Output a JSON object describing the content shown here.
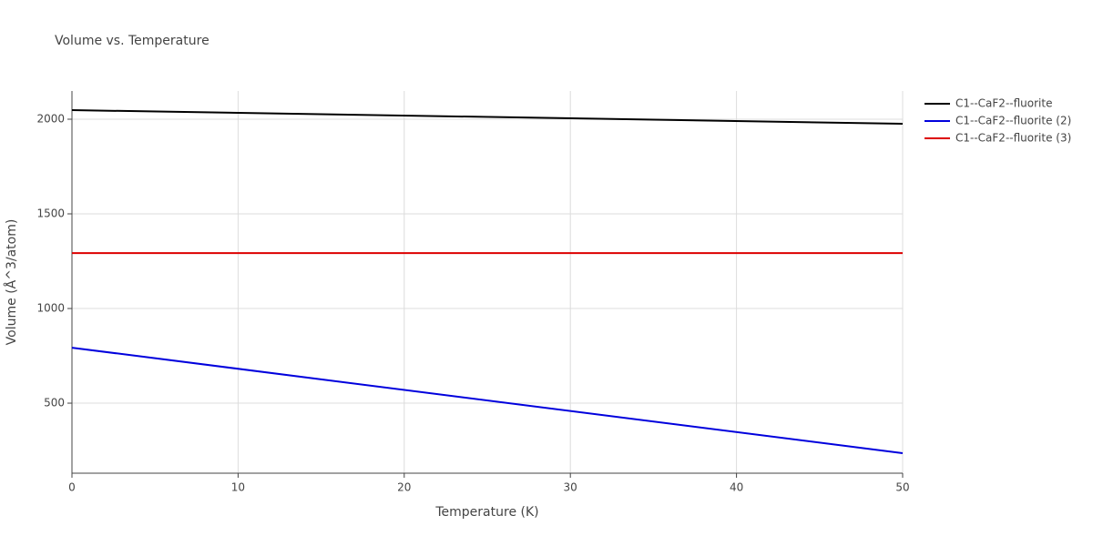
{
  "chart_data": {
    "type": "line",
    "title": "Volume vs. Temperature",
    "x_label": "Temperature (K)",
    "y_label": "Volume (Å^3/atom)",
    "x": [
      0,
      50
    ],
    "series": [
      {
        "name": "C1--CaF2--fluorite",
        "color": "#000000",
        "values": [
          2048,
          1976
        ]
      },
      {
        "name": "C1--CaF2--fluorite (2)",
        "color": "#0000dd",
        "values": [
          793,
          236
        ]
      },
      {
        "name": "C1--CaF2--fluorite (3)",
        "color": "#dd0000",
        "values": [
          1293,
          1293
        ]
      }
    ],
    "xlim": [
      0,
      50
    ],
    "xticks": [
      0,
      10,
      20,
      30,
      40,
      50
    ],
    "ylim": [
      130,
      2149
    ],
    "yticks": [
      500,
      1000,
      1500,
      2000
    ],
    "grid": true,
    "legend": "outside-right"
  }
}
